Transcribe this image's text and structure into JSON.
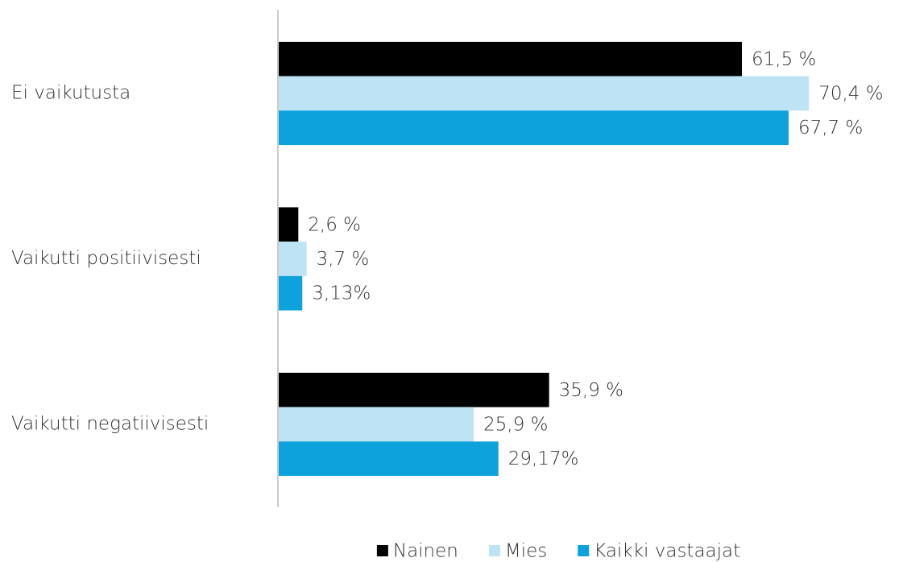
{
  "chart_data": {
    "type": "bar",
    "orientation": "horizontal",
    "categories": [
      "Ei vaikutusta",
      "Vaikutti positiivisesti",
      "Vaikutti negatiivisesti"
    ],
    "series": [
      {
        "name": "Nainen",
        "color": "#000000",
        "values": [
          61.5,
          2.6,
          35.9
        ],
        "value_labels": [
          "61,5 %",
          "2,6 %",
          "35,9 %"
        ]
      },
      {
        "name": "Mies",
        "color": "#bde3f4",
        "values": [
          70.4,
          3.7,
          25.9
        ],
        "value_labels": [
          "70,4 %",
          "3,7 %",
          "25,9 %"
        ]
      },
      {
        "name": "Kaikki vastaajat",
        "color": "#0ea2dc",
        "values": [
          67.7,
          3.13,
          29.17
        ],
        "value_labels": [
          "67,7 %",
          "3,13%",
          "29,17%"
        ]
      }
    ],
    "xlim": [
      0,
      80
    ],
    "legend": "bottom"
  }
}
